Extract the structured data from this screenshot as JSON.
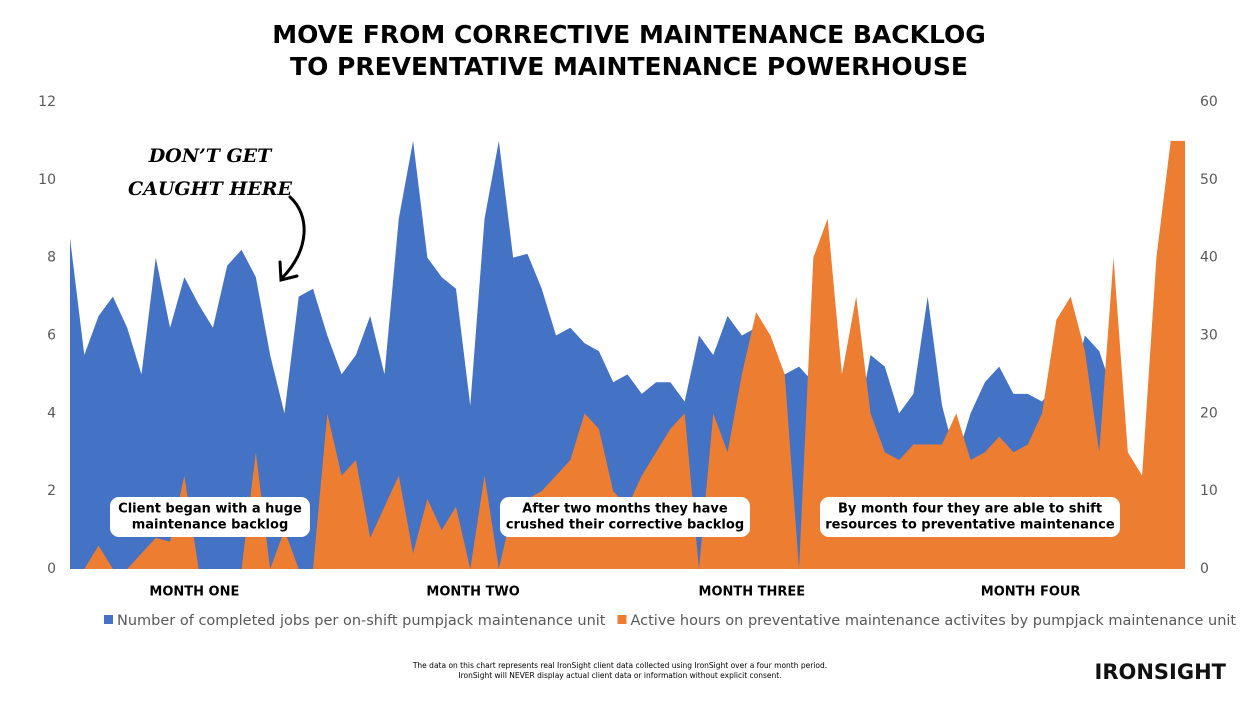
{
  "chart_data": {
    "type": "area",
    "title": [
      "MOVE FROM CORRECTIVE MAINTENANCE BACKLOG",
      "TO PREVENTATIVE MAINTENANCE POWERHOUSE"
    ],
    "categories": [
      null,
      null,
      null,
      null,
      null,
      null,
      null,
      null,
      null,
      null,
      null,
      null,
      null,
      null,
      null,
      null,
      null,
      null,
      null,
      null,
      null,
      null,
      null,
      null,
      null,
      null,
      null,
      null,
      null,
      null,
      null,
      null,
      null,
      null,
      null,
      null,
      null,
      null,
      null,
      null,
      null,
      null,
      null,
      null,
      null,
      null,
      null,
      null,
      null,
      null,
      null,
      null,
      null,
      null,
      null,
      null,
      null,
      null,
      null,
      null,
      null,
      null,
      null,
      null,
      null,
      null,
      null,
      null,
      null,
      null,
      null,
      null,
      null,
      null,
      null,
      null,
      null,
      null,
      null
    ],
    "month_labels": [
      "MONTH ONE",
      "MONTH TWO",
      "MONTH THREE",
      "MONTH FOUR"
    ],
    "series": [
      {
        "name": "Number of completed jobs per on-shift pumpjack maintenance unit",
        "color": "#4472c4",
        "axis": "y",
        "values": [
          8.5,
          5.5,
          6.5,
          7,
          6.2,
          5,
          8,
          6.2,
          7.5,
          6.8,
          6.2,
          7.8,
          8.2,
          7.5,
          5.5,
          4,
          7,
          7.2,
          6,
          5,
          5.5,
          6.5,
          5,
          9,
          11,
          8,
          7.5,
          7.2,
          4.2,
          9,
          11,
          8,
          8.1,
          7.2,
          6,
          6.2,
          5.8,
          5.6,
          4.8,
          5,
          4.5,
          4.8,
          4.8,
          4.3,
          6,
          5.5,
          6.5,
          6,
          6.2,
          5.8,
          5,
          5.2,
          4.8,
          4,
          4.3,
          3.5,
          5.5,
          5.2,
          4,
          4.5,
          7,
          4.2,
          2.8,
          4,
          4.8,
          5.2,
          4.5,
          4.5,
          4.3,
          4.8,
          4.5,
          6,
          5.6,
          4.5,
          2.8,
          2.4,
          5,
          4.4,
          4.5
        ]
      },
      {
        "name": "Active hours on preventative maintenance activites by pumpjack maintenance unit",
        "color": "#ed7d31",
        "axis": "y2",
        "values": [
          0,
          0,
          3,
          0,
          0,
          2,
          4,
          3.5,
          12,
          0,
          0,
          0,
          0,
          15,
          0,
          5,
          0,
          0,
          20,
          12,
          14,
          4,
          8,
          12,
          2,
          9,
          5,
          8,
          0,
          12,
          0,
          8,
          9,
          10,
          12,
          14,
          20,
          18,
          10,
          8,
          12,
          15,
          18,
          20,
          0,
          20,
          15,
          25,
          33,
          30,
          25,
          0,
          40,
          45,
          25,
          35,
          20,
          15,
          14,
          16,
          16,
          16,
          20,
          14,
          15,
          17,
          15,
          16,
          20,
          32,
          35,
          28,
          15,
          40,
          15,
          12,
          40,
          55,
          55
        ]
      }
    ],
    "ylim": [
      0,
      12
    ],
    "yticks": [
      0,
      2,
      4,
      6,
      8,
      10,
      12
    ],
    "y2lim": [
      0,
      60
    ],
    "y2ticks": [
      0,
      10,
      20,
      30,
      40,
      50,
      60
    ],
    "annotations": [
      {
        "text": [
          "Client began with a huge",
          "maintenance backlog"
        ]
      },
      {
        "text": [
          "After two months they have",
          "crushed their corrective backlog"
        ]
      },
      {
        "text": [
          "By month four they are able to shift",
          "resources to preventative maintenance"
        ]
      }
    ],
    "callout": [
      "DON’T GET",
      "CAUGHT HERE"
    ]
  },
  "footer": {
    "note": [
      "The data on this chart represents real IronSight client data collected using IronSight over a four month period.",
      "IronSight will NEVER display actual client data or information without explicit consent."
    ],
    "logo": "IRONSIGHT"
  }
}
